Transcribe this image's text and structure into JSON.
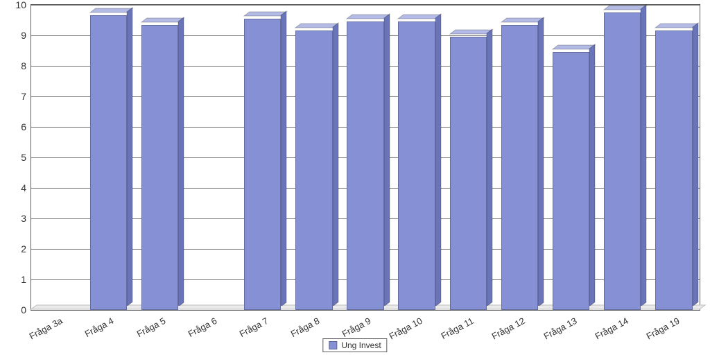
{
  "chart": {
    "type": "bar",
    "categories": [
      "Fråga 3a",
      "Fråga 4",
      "Fråga 5",
      "Fråga 6",
      "Fråga 7",
      "Fråga 8",
      "Fråga 9",
      "Fråga 10",
      "Fråga 11",
      "Fråga 12",
      "Fråga 13",
      "Fråga 14",
      "Fråga 19"
    ],
    "values": [
      0.0,
      9.65,
      9.35,
      0.0,
      9.55,
      9.15,
      9.45,
      9.45,
      8.95,
      9.35,
      8.45,
      9.75,
      9.15
    ],
    "ylim": [
      0,
      10
    ],
    "ytick_step": 1,
    "ytick_labels": [
      "0",
      "1",
      "2",
      "3",
      "4",
      "5",
      "6",
      "7",
      "8",
      "9",
      "10"
    ],
    "bar_color": "#8690d4",
    "bar_color_top": "#b4bbe6",
    "bar_color_side": "#6a74b8",
    "background_color": "#ffffff",
    "plot_bg": "#ffffff",
    "grid_color": "#7a7a7a",
    "border_color": "#5a5a5a",
    "bar_width_ratio": 0.72,
    "depth_dx": 8,
    "depth_dy": 6,
    "xlabel_fontsize": 13,
    "ylabel_fontsize": 14,
    "xlabel_rotation_deg": -28,
    "legend": {
      "label": "Ung Invest",
      "swatch": "#8690d4"
    }
  }
}
